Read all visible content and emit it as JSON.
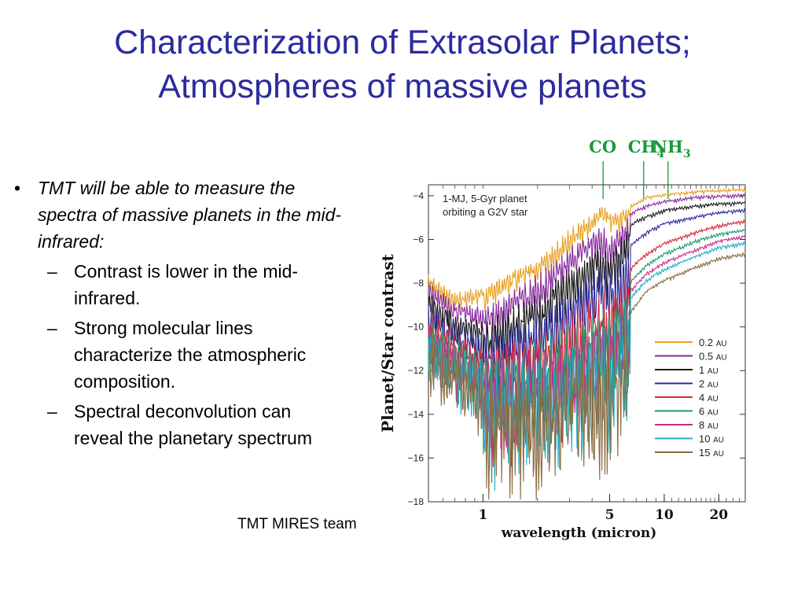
{
  "slide": {
    "title_line1": "Characterization of Extrasolar Planets;",
    "title_line2": "Atmospheres of massive planets",
    "bullet_main": "TMT will be able to measure the spectra of massive planets in the mid-infrared:",
    "sub_bullets": [
      "Contrast is lower in the mid-infrared.",
      "Strong molecular lines characterize the atmospheric composition.",
      "Spectral deconvolution can reveal the planetary spectrum"
    ],
    "bullet_symbol": "•",
    "dash_symbol": "–",
    "credit": "TMT MIRES team"
  },
  "chart_data": {
    "type": "line",
    "xlabel": "wavelength (micron)",
    "ylabel": "Planet/Star contrast",
    "xscale": "log",
    "xlim": [
      0.5,
      28
    ],
    "ylim": [
      -18,
      -3.5
    ],
    "xticks": [
      1,
      5,
      10,
      20
    ],
    "xtick_labels": [
      "1",
      "5",
      "10",
      "20"
    ],
    "yticks": [
      -4,
      -6,
      -8,
      -10,
      -12,
      -14,
      -16,
      -18
    ],
    "ytick_labels": [
      "−4",
      "−6",
      "−8",
      "−10",
      "−12",
      "−14",
      "−16",
      "−18"
    ],
    "annotation": {
      "line1": "1-MJ, 5-Gyr planet",
      "line2": "orbiting a G2V star"
    },
    "molecules": [
      {
        "name": "CO",
        "sub": "",
        "x": 4.6
      },
      {
        "name": "CH",
        "sub": "4",
        "x": 7.7
      },
      {
        "name": "NH",
        "sub": "3",
        "x": 10.5
      }
    ],
    "molecule_color": "#1a9a3a",
    "legend_position": "lower-right",
    "series": [
      {
        "name": "0.2",
        "unit": "AU",
        "color": "#e8a020",
        "points": [
          [
            0.5,
            -7.6
          ],
          [
            0.7,
            -8.4
          ],
          [
            1.0,
            -8.1
          ],
          [
            1.5,
            -7.3
          ],
          [
            2.0,
            -6.9
          ],
          [
            3.0,
            -5.5
          ],
          [
            4.0,
            -4.8
          ],
          [
            4.6,
            -4.3
          ],
          [
            5.0,
            -4.7
          ],
          [
            6.0,
            -4.5
          ],
          [
            7.0,
            -4.3
          ],
          [
            8.0,
            -4.0
          ],
          [
            10.0,
            -3.9
          ],
          [
            15.0,
            -3.75
          ],
          [
            20.0,
            -3.7
          ],
          [
            28.0,
            -3.65
          ]
        ]
      },
      {
        "name": "0.5",
        "unit": "AU",
        "color": "#8a2aa0",
        "points": [
          [
            0.5,
            -7.8
          ],
          [
            0.7,
            -8.8
          ],
          [
            1.0,
            -9.0
          ],
          [
            1.5,
            -8.2
          ],
          [
            2.0,
            -7.6
          ],
          [
            3.0,
            -6.3
          ],
          [
            4.0,
            -5.5
          ],
          [
            4.6,
            -5.2
          ],
          [
            5.0,
            -5.8
          ],
          [
            6.0,
            -5.0
          ],
          [
            7.0,
            -4.6
          ],
          [
            8.0,
            -4.4
          ],
          [
            10.0,
            -4.2
          ],
          [
            15.0,
            -4.0
          ],
          [
            20.0,
            -3.95
          ],
          [
            28.0,
            -3.9
          ]
        ]
      },
      {
        "name": "1",
        "unit": "AU",
        "color": "#1a1a1a",
        "points": [
          [
            0.5,
            -8.3
          ],
          [
            0.7,
            -9.3
          ],
          [
            1.0,
            -9.7
          ],
          [
            1.5,
            -9.0
          ],
          [
            2.0,
            -8.4
          ],
          [
            3.0,
            -7.1
          ],
          [
            4.0,
            -6.3
          ],
          [
            4.6,
            -6.0
          ],
          [
            5.0,
            -6.5
          ],
          [
            6.0,
            -5.6
          ],
          [
            7.0,
            -5.1
          ],
          [
            8.0,
            -4.9
          ],
          [
            10.0,
            -4.6
          ],
          [
            15.0,
            -4.4
          ],
          [
            20.0,
            -4.3
          ],
          [
            28.0,
            -4.25
          ]
        ]
      },
      {
        "name": "2",
        "unit": "AU",
        "color": "#2a2a9a",
        "points": [
          [
            0.5,
            -8.8
          ],
          [
            0.7,
            -9.8
          ],
          [
            1.0,
            -10.3
          ],
          [
            1.5,
            -9.7
          ],
          [
            2.0,
            -9.2
          ],
          [
            3.0,
            -8.2
          ],
          [
            4.0,
            -7.4
          ],
          [
            4.6,
            -7.0
          ],
          [
            5.0,
            -7.5
          ],
          [
            6.0,
            -6.5
          ],
          [
            7.0,
            -6.0
          ],
          [
            8.0,
            -5.6
          ],
          [
            10.0,
            -5.2
          ],
          [
            15.0,
            -4.9
          ],
          [
            20.0,
            -4.7
          ],
          [
            28.0,
            -4.6
          ]
        ]
      },
      {
        "name": "4",
        "unit": "AU",
        "color": "#d8283a",
        "points": [
          [
            0.5,
            -9.2
          ],
          [
            0.7,
            -10.2
          ],
          [
            1.0,
            -10.8
          ],
          [
            1.5,
            -10.4
          ],
          [
            2.0,
            -10.0
          ],
          [
            3.0,
            -9.3
          ],
          [
            4.0,
            -8.6
          ],
          [
            4.6,
            -8.2
          ],
          [
            5.0,
            -8.6
          ],
          [
            6.0,
            -7.6
          ],
          [
            7.0,
            -7.0
          ],
          [
            8.0,
            -6.6
          ],
          [
            10.0,
            -6.1
          ],
          [
            15.0,
            -5.6
          ],
          [
            20.0,
            -5.3
          ],
          [
            28.0,
            -5.1
          ]
        ]
      },
      {
        "name": "6",
        "unit": "AU",
        "color": "#1a9a6a",
        "points": [
          [
            0.5,
            -9.5
          ],
          [
            0.7,
            -10.4
          ],
          [
            1.0,
            -11.1
          ],
          [
            1.5,
            -10.8
          ],
          [
            2.0,
            -10.5
          ],
          [
            3.0,
            -9.9
          ],
          [
            4.0,
            -9.2
          ],
          [
            4.6,
            -8.8
          ],
          [
            5.0,
            -9.2
          ],
          [
            6.0,
            -8.2
          ],
          [
            7.0,
            -7.6
          ],
          [
            8.0,
            -7.1
          ],
          [
            10.0,
            -6.6
          ],
          [
            15.0,
            -6.0
          ],
          [
            20.0,
            -5.7
          ],
          [
            28.0,
            -5.5
          ]
        ]
      },
      {
        "name": "8",
        "unit": "AU",
        "color": "#c82a8a",
        "points": [
          [
            0.5,
            -9.6
          ],
          [
            0.7,
            -10.6
          ],
          [
            1.0,
            -11.3
          ],
          [
            1.5,
            -11.0
          ],
          [
            2.0,
            -10.8
          ],
          [
            3.0,
            -10.3
          ],
          [
            4.0,
            -9.6
          ],
          [
            4.6,
            -9.2
          ],
          [
            5.0,
            -9.6
          ],
          [
            6.0,
            -8.6
          ],
          [
            7.0,
            -8.0
          ],
          [
            8.0,
            -7.5
          ],
          [
            10.0,
            -7.0
          ],
          [
            15.0,
            -6.4
          ],
          [
            20.0,
            -6.0
          ],
          [
            28.0,
            -5.8
          ]
        ]
      },
      {
        "name": "10",
        "unit": "AU",
        "color": "#20b0c8",
        "points": [
          [
            0.5,
            -9.7
          ],
          [
            0.7,
            -10.7
          ],
          [
            1.0,
            -11.5
          ],
          [
            1.5,
            -11.2
          ],
          [
            2.0,
            -11.0
          ],
          [
            3.0,
            -10.6
          ],
          [
            4.0,
            -10.0
          ],
          [
            4.6,
            -9.6
          ],
          [
            5.0,
            -10.0
          ],
          [
            6.0,
            -9.0
          ],
          [
            7.0,
            -8.3
          ],
          [
            8.0,
            -7.8
          ],
          [
            10.0,
            -7.3
          ],
          [
            15.0,
            -6.7
          ],
          [
            20.0,
            -6.3
          ],
          [
            28.0,
            -6.1
          ]
        ]
      },
      {
        "name": "15",
        "unit": "AU",
        "color": "#8a6a40",
        "points": [
          [
            0.5,
            -9.8
          ],
          [
            0.7,
            -10.9
          ],
          [
            1.0,
            -11.8
          ],
          [
            1.5,
            -11.6
          ],
          [
            2.0,
            -11.5
          ],
          [
            3.0,
            -11.2
          ],
          [
            4.0,
            -10.6
          ],
          [
            4.6,
            -10.2
          ],
          [
            5.0,
            -10.6
          ],
          [
            6.0,
            -9.6
          ],
          [
            7.0,
            -8.9
          ],
          [
            8.0,
            -8.3
          ],
          [
            10.0,
            -7.8
          ],
          [
            15.0,
            -7.2
          ],
          [
            20.0,
            -6.8
          ],
          [
            28.0,
            -6.6
          ]
        ]
      }
    ]
  }
}
